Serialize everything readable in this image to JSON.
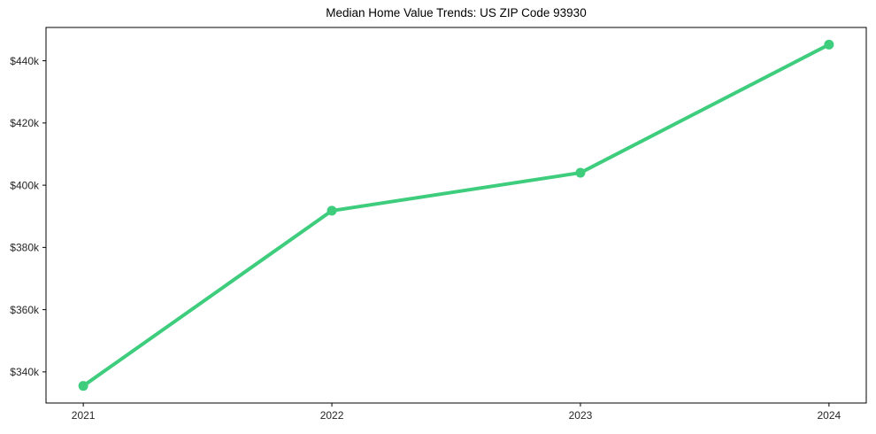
{
  "chart_data": {
    "type": "line",
    "title": "Median Home Value Trends: US ZIP Code 93930",
    "x": [
      2021,
      2022,
      2023,
      2024
    ],
    "x_tick_labels": [
      "2021",
      "2022",
      "2023",
      "2024"
    ],
    "series": [
      {
        "name": "Median Home Value",
        "values": [
          335500,
          391800,
          404000,
          445200
        ]
      }
    ],
    "y_ticks": [
      340000,
      360000,
      380000,
      400000,
      420000,
      440000
    ],
    "y_tick_labels": [
      "$340k",
      "$360k",
      "$380k",
      "$400k",
      "$420k",
      "$440k"
    ],
    "xlabel": "",
    "ylabel": "",
    "xlim": [
      2020.85,
      2024.15
    ],
    "ylim": [
      330000,
      450700
    ],
    "grid": false,
    "legend_visible": false,
    "line_color": "#3ecd7d",
    "marker_color": "#3ecd7d",
    "axis_color": "#000000",
    "tick_text_color": "#262626",
    "background_color": "#ffffff"
  }
}
